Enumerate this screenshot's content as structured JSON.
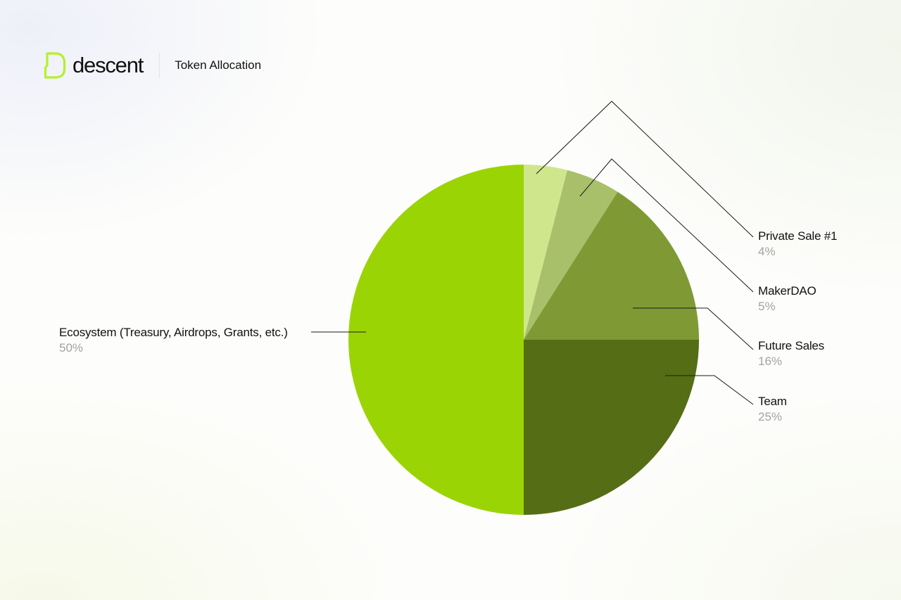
{
  "brand": {
    "name": "descent",
    "accent_color": "#b5f02a"
  },
  "page": {
    "title": "Token Allocation"
  },
  "chart_data": {
    "type": "pie",
    "start": "12 o'clock",
    "direction": "clockwise",
    "slices": [
      {
        "label": "Private Sale #1",
        "value": 4,
        "value_label": "4%",
        "color": "#d0e68c"
      },
      {
        "label": "MakerDAO",
        "value": 5,
        "value_label": "5%",
        "color": "#a8c06a"
      },
      {
        "label": "Future Sales",
        "value": 16,
        "value_label": "16%",
        "color": "#7f9a34"
      },
      {
        "label": "Team",
        "value": 25,
        "value_label": "25%",
        "color": "#556d15"
      },
      {
        "label": "Ecosystem (Treasury, Airdrops, Grants, etc.)",
        "value": 50,
        "value_label": "50%",
        "color": "#9bd405"
      }
    ]
  }
}
